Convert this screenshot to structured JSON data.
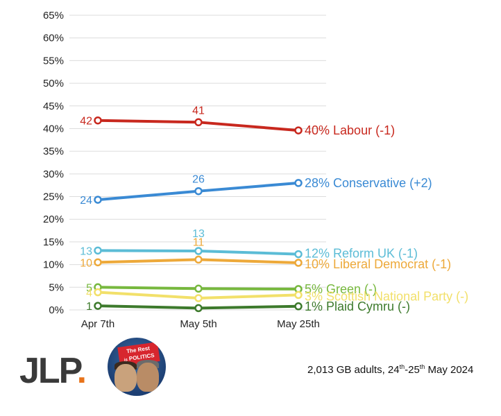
{
  "chart_data": {
    "type": "line",
    "categories": [
      "Apr 7th",
      "May 5th",
      "May 25th"
    ],
    "ylim": [
      0,
      65
    ],
    "yticks": [
      "0%",
      "5%",
      "10%",
      "15%",
      "20%",
      "25%",
      "30%",
      "35%",
      "40%",
      "45%",
      "50%",
      "55%",
      "60%",
      "65%"
    ],
    "series": [
      {
        "name": "Labour",
        "color": "#c8281e",
        "values": [
          41.8,
          41.4,
          39.6
        ],
        "point_labels": [
          "42",
          "41",
          ""
        ],
        "end_label": "40% Labour (-1)"
      },
      {
        "name": "Conservative",
        "color": "#3a8ad4",
        "values": [
          24.3,
          26.2,
          28.0
        ],
        "point_labels": [
          "24",
          "26",
          ""
        ],
        "end_label": "28% Conservative (+2)"
      },
      {
        "name": "Reform UK",
        "color": "#5bbcd6",
        "values": [
          13.1,
          13.0,
          12.3
        ],
        "point_labels": [
          "13",
          "13",
          ""
        ],
        "end_label": "12% Reform UK (-1)"
      },
      {
        "name": "Liberal Democrat",
        "color": "#eda93a",
        "values": [
          10.5,
          11.1,
          10.4
        ],
        "point_labels": [
          "10",
          "11",
          ""
        ],
        "end_label": "10% Liberal Democrat (-1)"
      },
      {
        "name": "Green",
        "color": "#77b83e",
        "values": [
          5.0,
          4.7,
          4.6
        ],
        "point_labels": [
          "5",
          "",
          ""
        ],
        "end_label": "5% Green (-)"
      },
      {
        "name": "Scottish National Party",
        "color": "#f2e06a",
        "values": [
          3.9,
          2.6,
          3.3
        ],
        "point_labels": [
          "4",
          "",
          ""
        ],
        "end_label": "3% Scottish National Party (-)"
      },
      {
        "name": "Plaid Cymru",
        "color": "#3d7a2c",
        "values": [
          0.9,
          0.4,
          0.8
        ],
        "point_labels": [
          "1",
          "",
          ""
        ],
        "end_label": "1% Plaid Cymru (-)"
      }
    ]
  },
  "footer": {
    "logo_text": "JLP",
    "logo_dot": ".",
    "podcast_top": "The Rest",
    "podcast_is": "is",
    "podcast_bottom": "POLITICS",
    "note_prefix": "2,013 GB adults, 24",
    "note_sup1": "th",
    "note_mid": "-25",
    "note_sup2": "th",
    "note_suffix": " May 2024"
  }
}
